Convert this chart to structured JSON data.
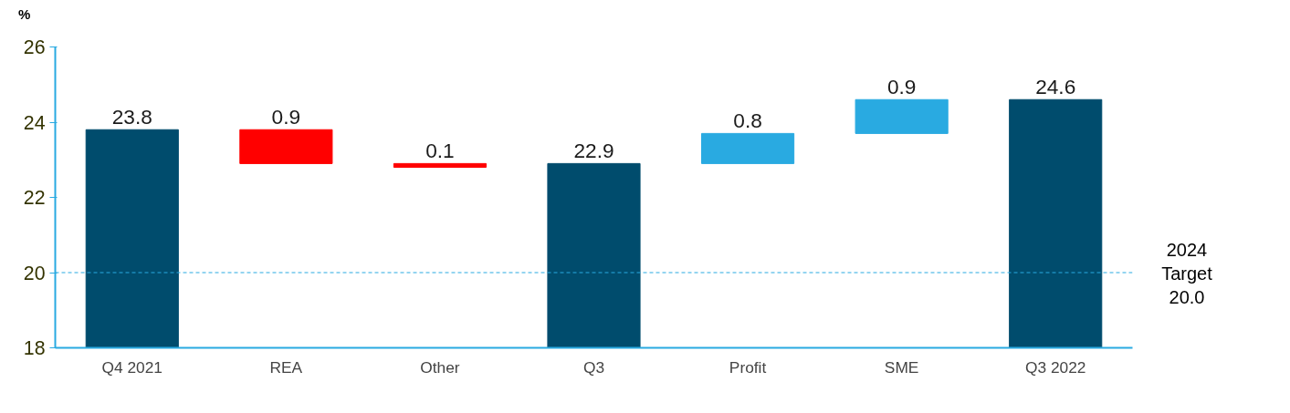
{
  "chart_data": {
    "type": "bar",
    "ylabel": "%",
    "categories": [
      "Q4 2021",
      "REA",
      "Other",
      "Q3",
      "Profit",
      "SME",
      "Q3 2022"
    ],
    "base": [
      18,
      23.8,
      22.9,
      18,
      22.9,
      23.7,
      18
    ],
    "values": [
      5.8,
      -0.9,
      -0.1,
      4.9,
      0.8,
      0.9,
      6.6
    ],
    "value_labels": [
      "23.8",
      "0.9",
      "0.1",
      "22.9",
      "0.8",
      "0.9",
      "24.6"
    ],
    "colors": [
      "#004c6d",
      "#ff0000",
      "#ff0000",
      "#004c6d",
      "#29aae1",
      "#29aae1",
      "#004c6d"
    ],
    "ylim": [
      18,
      26
    ],
    "yticks": [
      18,
      20,
      22,
      24,
      26
    ],
    "grid": false,
    "ref_lines": [
      {
        "axis": "y",
        "value": 20,
        "label": "2024\nTarget\n20.0",
        "color": "#29aae1",
        "line_style": "dashed"
      }
    ]
  }
}
